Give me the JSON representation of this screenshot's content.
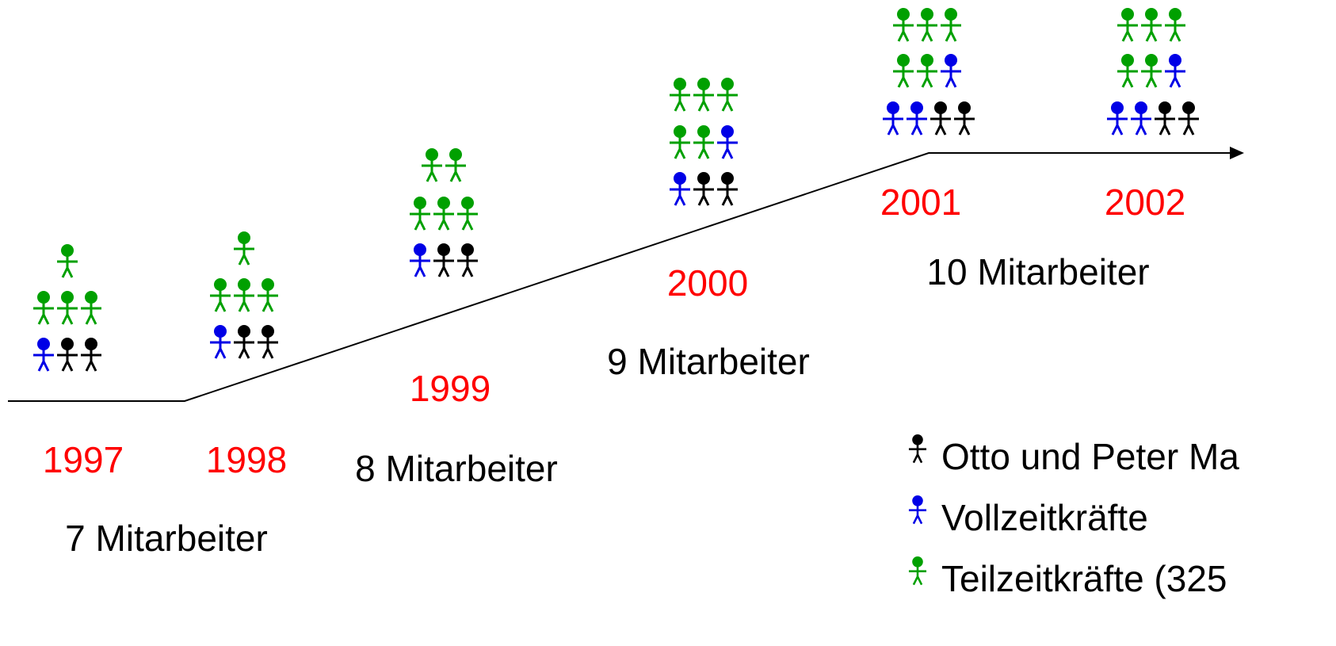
{
  "timeline": [
    {
      "year": "1997",
      "staff": "7 Mitarbeiter"
    },
    {
      "year": "1998",
      "staff": "8 Mitarbeiter"
    },
    {
      "year": "1999",
      "staff": "9 Mitarbeiter"
    },
    {
      "year": "2000",
      "staff": "10 Mitarbeiter"
    },
    {
      "year": "2001"
    },
    {
      "year": "2002"
    }
  ],
  "legend": [
    "Otto und Peter Ma",
    "Vollzeitkräfte",
    "Teilzeitkräfte (325"
  ]
}
